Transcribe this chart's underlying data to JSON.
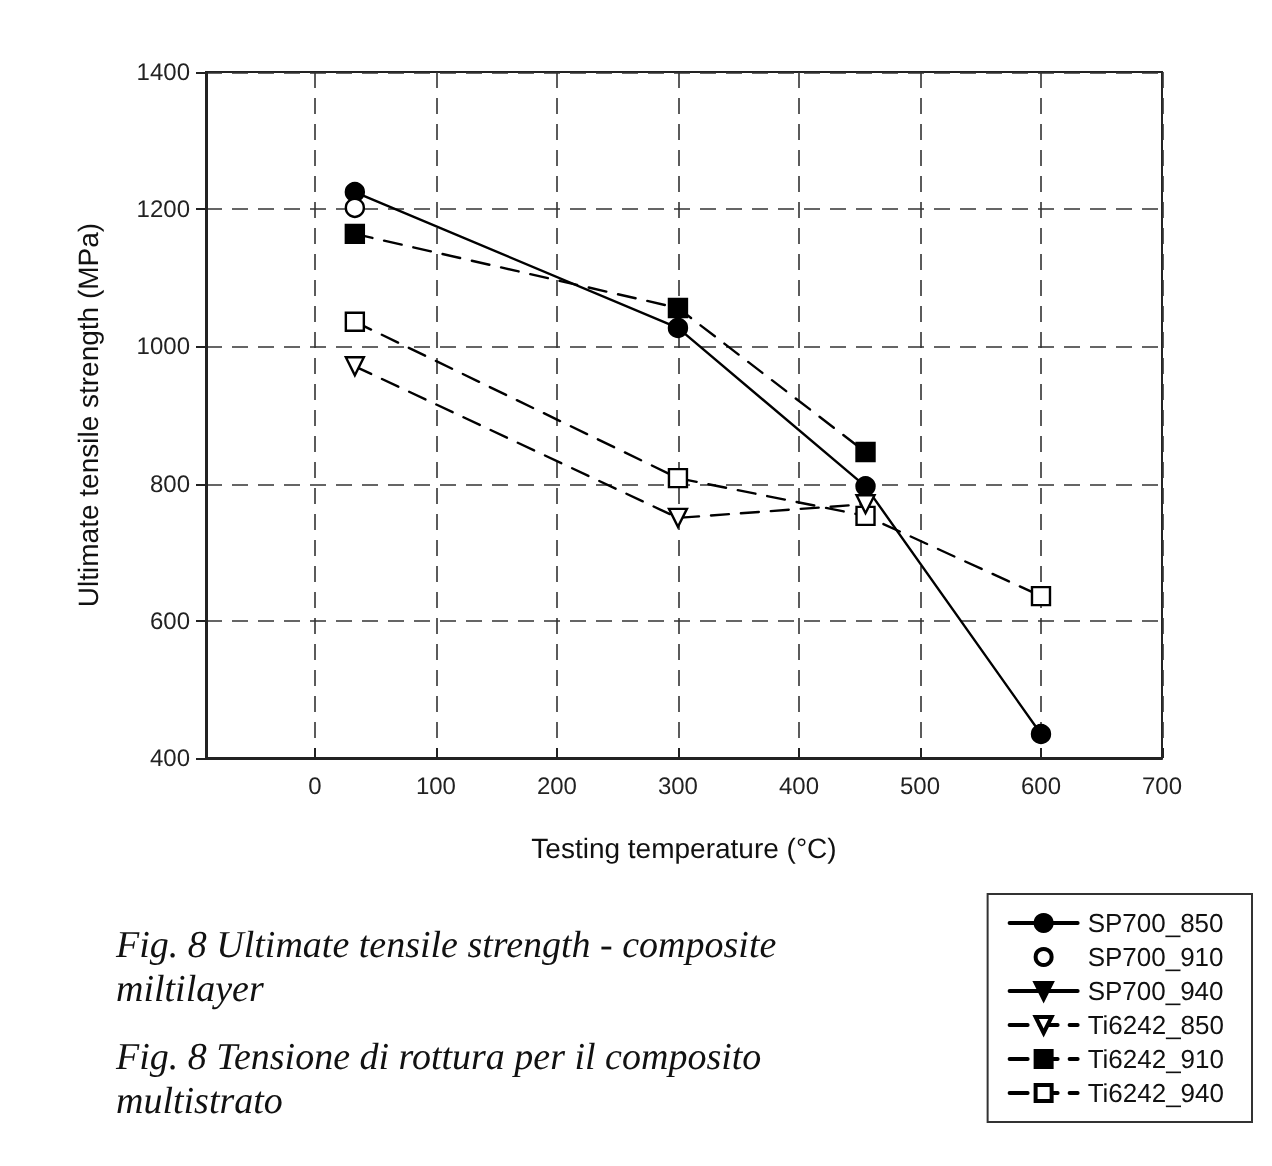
{
  "chart_data": {
    "type": "line",
    "xlabel": "Testing temperature (°C)",
    "ylabel": "Ultimate tensile strength (MPa)",
    "xlim": [
      -90,
      700
    ],
    "xticks": [
      0,
      100,
      200,
      300,
      400,
      500,
      600,
      700
    ],
    "ylim": [
      400,
      1400
    ],
    "yticks": [
      400,
      600,
      800,
      1000,
      1200,
      1400
    ],
    "grid": true,
    "legend": "bottom right",
    "annotations": [
      "Fig. 8 Ultimate tensile strength - composite miltilayer",
      "Fig. 8 Tensione di rottura per il composito multistrato"
    ],
    "x": [
      33,
      300,
      455,
      600
    ],
    "series": [
      {
        "name": "SP700_850",
        "color": "#000000",
        "marker": "circle",
        "line_style": "solid",
        "values": [
          1225,
          1027,
          796,
          435
        ]
      },
      {
        "name": "SP700_910",
        "color": "#000000",
        "marker": "circle_open",
        "line_style": "none",
        "values": [
          1202,
          null,
          null,
          null
        ]
      },
      {
        "name": "SP700_940",
        "color": "#000000",
        "marker": "triangle_down",
        "line_style": "solid",
        "values": [
          null,
          null,
          null,
          null
        ]
      },
      {
        "name": "Ti6242_850",
        "color": "#000000",
        "marker": "triangle_down_open",
        "line_style": "dashed",
        "values": [
          971,
          750,
          770,
          null
        ]
      },
      {
        "name": "Ti6242_910",
        "color": "#000000",
        "marker": "square",
        "line_style": "dashed",
        "values": [
          1164,
          1056,
          846,
          null
        ]
      },
      {
        "name": "Ti6242_940",
        "color": "#000000",
        "marker": "square_open",
        "line_style": "dashed",
        "values": [
          1036,
          808,
          753,
          636
        ]
      }
    ]
  }
}
